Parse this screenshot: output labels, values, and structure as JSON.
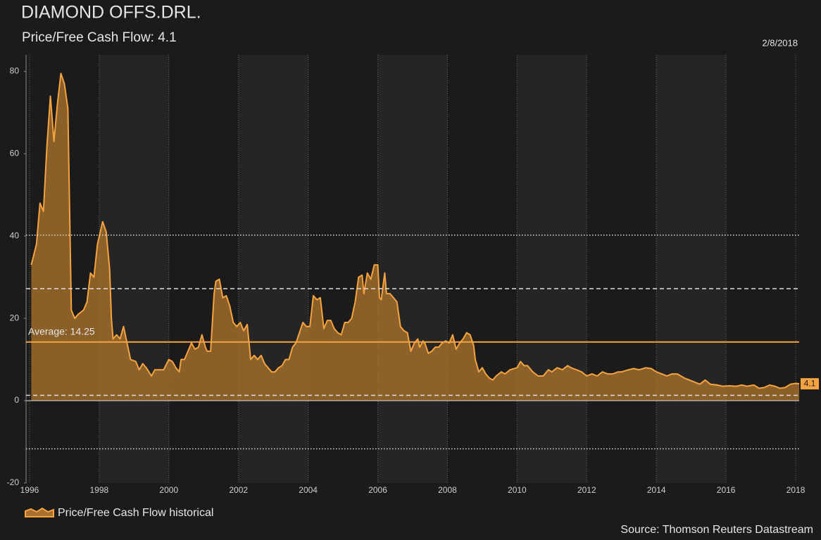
{
  "chart_data": {
    "type": "area",
    "title": "DIAMOND OFFS.DRL.",
    "subtitle": "Price/Free Cash Flow: 4.1",
    "date": "2/8/2018",
    "source": "Source: Thomson Reuters Datastream",
    "xlim": [
      1995.9,
      2018.1
    ],
    "xticks": [
      1996,
      1998,
      2000,
      2002,
      2004,
      2006,
      2008,
      2010,
      2012,
      2014,
      2016,
      2018
    ],
    "ylim": [
      -20,
      84
    ],
    "yticks": [
      -20,
      0,
      20,
      40,
      60,
      80
    ],
    "grid": true,
    "average": {
      "value": 14.25,
      "label": "Average: 14.25"
    },
    "reference_lines": [
      {
        "value": 40.2,
        "style": "dotted"
      },
      {
        "value": 27.2,
        "style": "dashed"
      },
      {
        "value": 1.3,
        "style": "dashed"
      },
      {
        "value": -11.7,
        "style": "dotted"
      }
    ],
    "last_label": {
      "value": 4.1,
      "label": "4.1"
    },
    "x": [
      1996.05,
      1996.2,
      1996.3,
      1996.4,
      1996.5,
      1996.6,
      1996.7,
      1996.8,
      1996.9,
      1997.0,
      1997.1,
      1997.2,
      1997.3,
      1997.4,
      1997.55,
      1997.65,
      1997.75,
      1997.85,
      1997.95,
      1998.1,
      1998.2,
      1998.3,
      1998.35,
      1998.4,
      1998.5,
      1998.6,
      1998.7,
      1998.8,
      1998.9,
      1999.05,
      1999.15,
      1999.25,
      1999.35,
      1999.5,
      1999.6,
      1999.75,
      1999.85,
      2000.0,
      2000.1,
      2000.2,
      2000.3,
      2000.35,
      2000.45,
      2000.55,
      2000.65,
      2000.75,
      2000.85,
      2000.95,
      2001.05,
      2001.1,
      2001.2,
      2001.3,
      2001.35,
      2001.45,
      2001.55,
      2001.65,
      2001.75,
      2001.85,
      2001.95,
      2002.05,
      2002.15,
      2002.25,
      2002.35,
      2002.45,
      2002.55,
      2002.65,
      2002.75,
      2002.85,
      2002.95,
      2003.05,
      2003.15,
      2003.25,
      2003.35,
      2003.45,
      2003.55,
      2003.65,
      2003.75,
      2003.85,
      2003.95,
      2004.05,
      2004.15,
      2004.25,
      2004.35,
      2004.45,
      2004.55,
      2004.65,
      2004.75,
      2004.85,
      2004.95,
      2005.05,
      2005.15,
      2005.25,
      2005.35,
      2005.45,
      2005.55,
      2005.6,
      2005.7,
      2005.8,
      2005.9,
      2006.0,
      2006.05,
      2006.1,
      2006.2,
      2006.25,
      2006.35,
      2006.45,
      2006.55,
      2006.6,
      2006.65,
      2006.75,
      2006.85,
      2006.95,
      2007.05,
      2007.15,
      2007.2,
      2007.3,
      2007.35,
      2007.45,
      2007.55,
      2007.65,
      2007.75,
      2007.85,
      2007.95,
      2008.05,
      2008.15,
      2008.25,
      2008.35,
      2008.45,
      2008.55,
      2008.65,
      2008.75,
      2008.8,
      2008.9,
      2009.0,
      2009.1,
      2009.2,
      2009.3,
      2009.4,
      2009.55,
      2009.65,
      2009.8,
      2010.0,
      2010.1,
      2010.2,
      2010.3,
      2010.45,
      2010.6,
      2010.75,
      2010.9,
      2011.0,
      2011.15,
      2011.3,
      2011.45,
      2011.55,
      2011.7,
      2011.85,
      2012.0,
      2012.15,
      2012.3,
      2012.45,
      2012.6,
      2012.75,
      2012.9,
      2013.0,
      2013.2,
      2013.35,
      2013.5,
      2013.7,
      2013.85,
      2014.0,
      2014.15,
      2014.3,
      2014.45,
      2014.6,
      2014.8,
      2014.95,
      2015.1,
      2015.25,
      2015.4,
      2015.55,
      2015.75,
      2015.9,
      2016.1,
      2016.3,
      2016.45,
      2016.6,
      2016.8,
      2016.95,
      2017.1,
      2017.25,
      2017.4,
      2017.55,
      2017.7,
      2017.85,
      2018.0,
      2018.1
    ],
    "series": [
      {
        "name": "Price/Free Cash Flow historical",
        "color": "#f5a340",
        "fill": "#a8702c",
        "values": [
          33,
          38,
          48,
          46,
          62,
          74,
          63,
          72,
          79.5,
          77,
          71,
          22,
          20,
          21,
          22,
          24,
          31,
          30,
          38,
          43.5,
          41,
          32,
          20,
          15,
          16,
          15,
          18,
          14,
          10,
          9.5,
          7.5,
          9,
          8,
          6,
          7.5,
          7.5,
          7.5,
          10,
          9.5,
          8,
          7,
          10,
          10,
          12,
          14,
          12.5,
          13,
          16,
          13,
          12,
          12,
          26,
          29,
          29.5,
          25,
          25.5,
          23,
          19,
          18,
          19,
          17,
          18.5,
          10,
          11,
          10,
          11,
          9,
          8,
          7,
          7,
          8,
          8.5,
          10,
          10,
          13,
          14,
          16.5,
          19,
          18,
          18,
          25.5,
          24.5,
          25,
          17.5,
          19.5,
          19.5,
          17.5,
          16.5,
          16,
          19,
          19,
          20,
          24,
          30,
          30.5,
          26,
          31,
          29.5,
          33,
          33,
          25,
          24.5,
          31,
          26,
          26,
          25,
          24,
          21,
          18,
          17,
          16.5,
          12,
          14,
          15,
          13,
          14.5,
          14,
          11.5,
          12,
          13,
          13,
          14,
          14.5,
          14,
          16,
          12.5,
          14,
          15,
          16.5,
          16,
          13.5,
          10,
          7,
          8,
          6.5,
          5.5,
          5,
          6,
          7,
          6.5,
          7.5,
          8,
          9.5,
          8.5,
          8.5,
          7,
          6,
          6,
          7.5,
          7,
          8,
          7.5,
          8.5,
          8,
          7.5,
          7,
          6,
          6.5,
          6,
          7,
          6.5,
          6.5,
          7,
          7,
          7.5,
          7.8,
          7.5,
          8,
          7.8,
          7,
          6.5,
          6,
          6.5,
          6.5,
          5.5,
          5,
          4.5,
          4,
          5,
          4,
          3.8,
          3.5,
          3.6,
          3.5,
          3.8,
          3.5,
          3.8,
          3,
          3.2,
          3.8,
          3.5,
          3,
          3.2,
          4,
          4.2,
          4.1
        ]
      }
    ]
  }
}
